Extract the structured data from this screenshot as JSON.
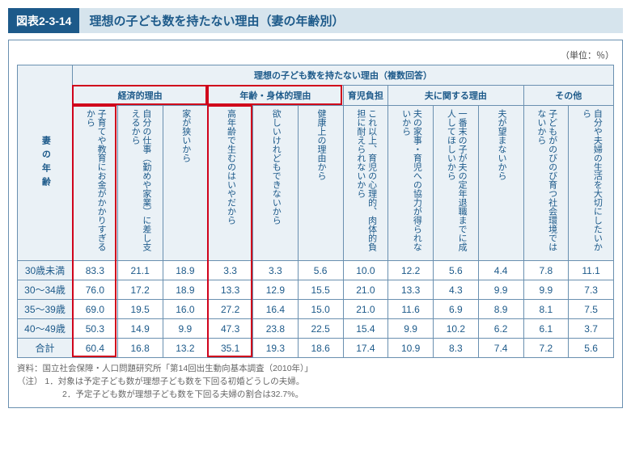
{
  "figure": {
    "number": "図表2-3-14",
    "title": "理想の子ども数を持たない理由（妻の年齢別）",
    "unit": "（単位：％）"
  },
  "table": {
    "top_header": "理想の子ども数を持たない理由（複数回答）",
    "row_axis": "妻の年齢",
    "groups": [
      {
        "label": "経済的理由",
        "span": 3
      },
      {
        "label": "年齢・身体的理由",
        "span": 3
      },
      {
        "label": "育児負担",
        "span": 1
      },
      {
        "label": "夫に関する理由",
        "span": 3
      },
      {
        "label": "その他",
        "span": 2
      }
    ],
    "columns": [
      "子育てや教育にお金がかかりすぎるから",
      "自分の仕事（勤めや家業）に差し支えるから",
      "家が狭いから",
      "高年齢で生むのはいやだから",
      "欲しいけれどもできないから",
      "健康上の理由から",
      "これ以上、育児の心理的、肉体的負担に耐えられないから",
      "夫の家事・育児への協力が得られないから",
      "一番末の子が夫の定年退職までに成人してほしいから",
      "夫が望まないから",
      "子どもがのびのび育つ社会環境ではないから",
      "自分や夫婦の生活を大切にしたいから"
    ],
    "rows": [
      {
        "label": "30歳未満",
        "values": [
          83.3,
          21.1,
          18.9,
          3.3,
          3.3,
          5.6,
          10.0,
          12.2,
          5.6,
          4.4,
          7.8,
          11.1
        ]
      },
      {
        "label": "30～34歳",
        "values": [
          76.0,
          17.2,
          18.9,
          13.3,
          12.9,
          15.5,
          21.0,
          13.3,
          4.3,
          9.9,
          9.9,
          7.3
        ]
      },
      {
        "label": "35～39歳",
        "values": [
          69.0,
          19.5,
          16.0,
          27.2,
          16.4,
          15.0,
          21.0,
          11.6,
          6.9,
          8.9,
          8.1,
          7.5
        ]
      },
      {
        "label": "40～49歳",
        "values": [
          50.3,
          14.9,
          9.9,
          47.3,
          23.8,
          22.5,
          15.4,
          9.9,
          10.2,
          6.2,
          6.1,
          3.7
        ]
      },
      {
        "label": "合計",
        "values": [
          60.4,
          16.8,
          13.2,
          35.1,
          19.3,
          18.6,
          17.4,
          10.9,
          8.3,
          7.4,
          7.2,
          5.6
        ]
      }
    ],
    "highlight": {
      "group_boxes": [
        0,
        1
      ],
      "col_boxes": [
        0,
        3
      ]
    }
  },
  "notes": {
    "source": "資料：国立社会保障・人口問題研究所「第14回出生動向基本調査（2010年）」",
    "note_label": "（注）",
    "note1": "1．対象は予定子ども数が理想子ども数を下回る初婚どうしの夫婦。",
    "note2": "2．予定子ども数が理想子ども数を下回る夫婦の割合は32.7%。"
  },
  "style": {
    "border_color": "#6a90b0",
    "header_bg": "#eaf1f6",
    "accent": "#1d5a8a",
    "red": "#d0021b"
  }
}
